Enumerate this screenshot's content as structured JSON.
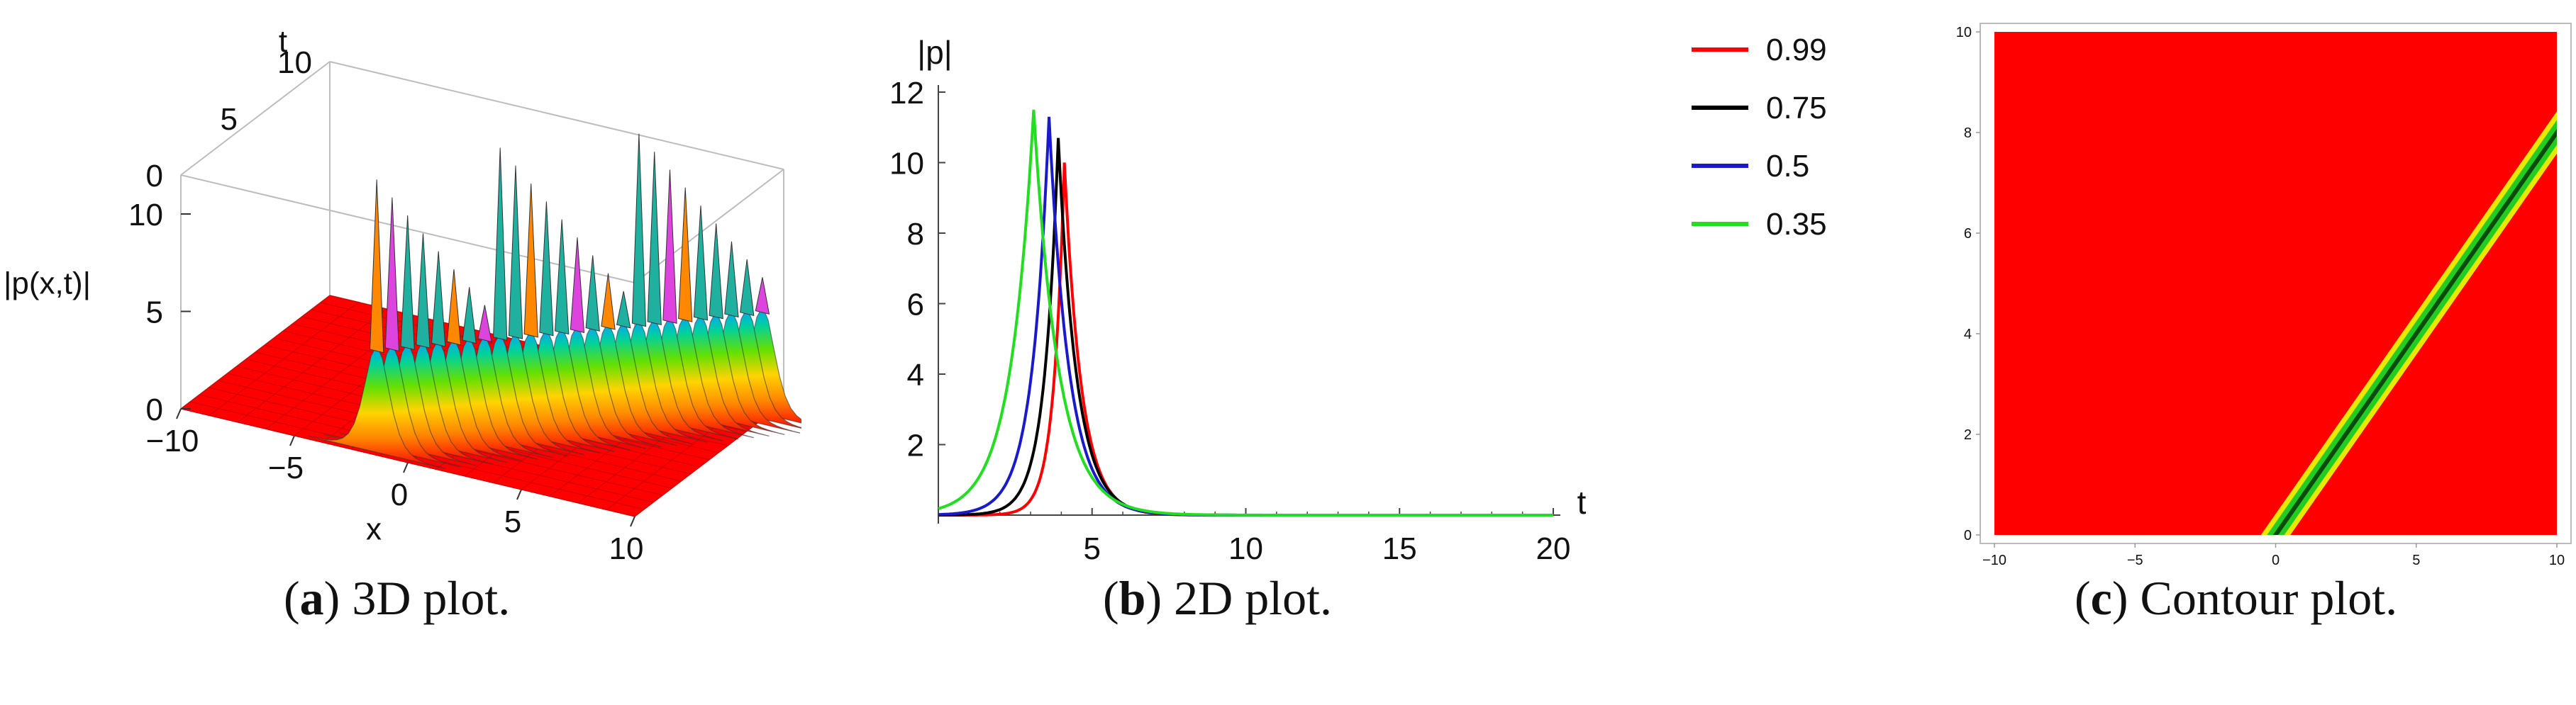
{
  "captions": [
    {
      "letter": "a",
      "text": "3D plot."
    },
    {
      "letter": "b",
      "text": "2D plot."
    },
    {
      "letter": "c",
      "text": "Contour plot."
    }
  ],
  "colors": {
    "red": "#ff0000",
    "black": "#000000",
    "blue": "#1a1acc",
    "green": "#22dd22",
    "yellow": "#e8e800"
  },
  "chart_data": [
    {
      "type": "surface",
      "zlabel": "|p(x,t)|",
      "xlabel": "x",
      "tlabel": "t",
      "x_ticks": [
        "−10",
        "−5",
        "0",
        "5",
        "10"
      ],
      "t_ticks": [
        "0",
        "5",
        "10"
      ],
      "z_ticks": [
        "0",
        "5",
        "10"
      ],
      "xlim": [
        -10,
        10
      ],
      "tlim": [
        0,
        10
      ],
      "zlim": [
        0,
        12
      ]
    },
    {
      "type": "line",
      "ylabel": "|p|",
      "xlabel": "t",
      "xlim": [
        0,
        20
      ],
      "ylim": [
        0,
        12
      ],
      "x_ticks": [
        "5",
        "10",
        "15",
        "20"
      ],
      "y_ticks": [
        "2",
        "4",
        "6",
        "8",
        "10",
        "12"
      ],
      "legend_position": "right",
      "series": [
        {
          "name": "0.99",
          "color": "#ff0000",
          "peak_t": 4.1,
          "peak": 10.0,
          "left_w": 0.35,
          "right_w": 0.55
        },
        {
          "name": "0.75",
          "color": "#000000",
          "peak_t": 3.9,
          "peak": 10.7,
          "left_w": 0.45,
          "right_w": 0.6
        },
        {
          "name": "0.5",
          "color": "#1a1acc",
          "peak_t": 3.6,
          "peak": 11.3,
          "left_w": 0.55,
          "right_w": 0.65
        },
        {
          "name": "0.35",
          "color": "#22dd22",
          "peak_t": 3.1,
          "peak": 11.5,
          "left_w": 0.75,
          "right_w": 0.8
        }
      ]
    },
    {
      "type": "heatmap",
      "xlim": [
        -10,
        10
      ],
      "ylim": [
        0,
        10
      ],
      "x_ticks": [
        "−10",
        "−5",
        "0",
        "5",
        "10"
      ],
      "y_ticks": [
        "0",
        "2",
        "4",
        "6",
        "8",
        "10"
      ],
      "band": {
        "x_at_t0": 0,
        "x_at_t8": 10
      }
    }
  ]
}
